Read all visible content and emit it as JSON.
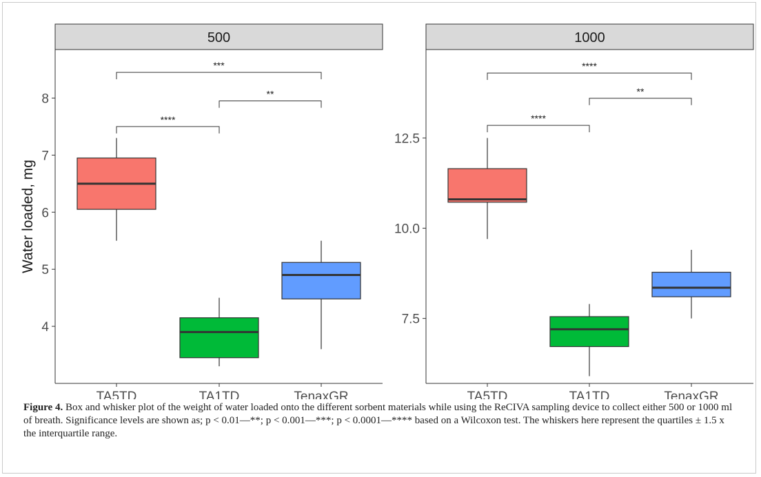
{
  "chart_data": [
    {
      "type": "box",
      "panel_label": "500",
      "ylabel": "Water loaded, mg",
      "xlabel": "",
      "categories": [
        "TA5TD",
        "TA1TD",
        "TenaxGR"
      ],
      "ylim": [
        3.0,
        8.85
      ],
      "yticks": [
        4,
        5,
        6,
        7,
        8
      ],
      "grid": false,
      "boxes": [
        {
          "category": "TA5TD",
          "whisker_low": 5.5,
          "q1": 6.05,
          "median": 6.5,
          "q3": 6.95,
          "whisker_high": 7.3,
          "color": "#F8766D"
        },
        {
          "category": "TA1TD",
          "whisker_low": 3.3,
          "q1": 3.45,
          "median": 3.9,
          "q3": 4.15,
          "whisker_high": 4.5,
          "color": "#00BA38"
        },
        {
          "category": "TenaxGR",
          "whisker_low": 3.6,
          "q1": 4.48,
          "median": 4.9,
          "q3": 5.12,
          "whisker_high": 5.5,
          "color": "#619CFF"
        }
      ],
      "significance": [
        {
          "from": "TA5TD",
          "to": "TA1TD",
          "y": 7.5,
          "label": "****"
        },
        {
          "from": "TA1TD",
          "to": "TenaxGR",
          "y": 7.95,
          "label": "**"
        },
        {
          "from": "TA5TD",
          "to": "TenaxGR",
          "y": 8.45,
          "label": "***"
        }
      ]
    },
    {
      "type": "box",
      "panel_label": "1000",
      "xlabel": "",
      "categories": [
        "TA5TD",
        "TA1TD",
        "TenaxGR"
      ],
      "ylim": [
        5.7,
        14.95
      ],
      "yticks": [
        7.5,
        10.0,
        12.5
      ],
      "ytick_labels": [
        "7.5",
        "10.0",
        "12.5"
      ],
      "grid": false,
      "boxes": [
        {
          "category": "TA5TD",
          "whisker_low": 9.7,
          "q1": 10.72,
          "median": 10.8,
          "q3": 11.65,
          "whisker_high": 12.5,
          "color": "#F8766D"
        },
        {
          "category": "TA1TD",
          "whisker_low": 5.9,
          "q1": 6.72,
          "median": 7.2,
          "q3": 7.55,
          "whisker_high": 7.9,
          "color": "#00BA38"
        },
        {
          "category": "TenaxGR",
          "whisker_low": 7.5,
          "q1": 8.1,
          "median": 8.35,
          "q3": 8.78,
          "whisker_high": 9.4,
          "color": "#619CFF"
        }
      ],
      "significance": [
        {
          "from": "TA5TD",
          "to": "TA1TD",
          "y": 12.85,
          "label": "****"
        },
        {
          "from": "TA1TD",
          "to": "TenaxGR",
          "y": 13.6,
          "label": "**"
        },
        {
          "from": "TA5TD",
          "to": "TenaxGR",
          "y": 14.3,
          "label": "****"
        }
      ]
    }
  ],
  "caption": {
    "label": "Figure 4.",
    "text": " Box and whisker plot of the weight of water loaded onto the different sorbent materials while using the ReCIVA sampling device to collect either 500 or 1000 ml of breath. Significance levels are shown as; p < 0.01—**; p < 0.001—***; p < 0.0001—**** based on a Wilcoxon test. The whiskers here represent the quartiles ± 1.5 x the interquartile range."
  }
}
